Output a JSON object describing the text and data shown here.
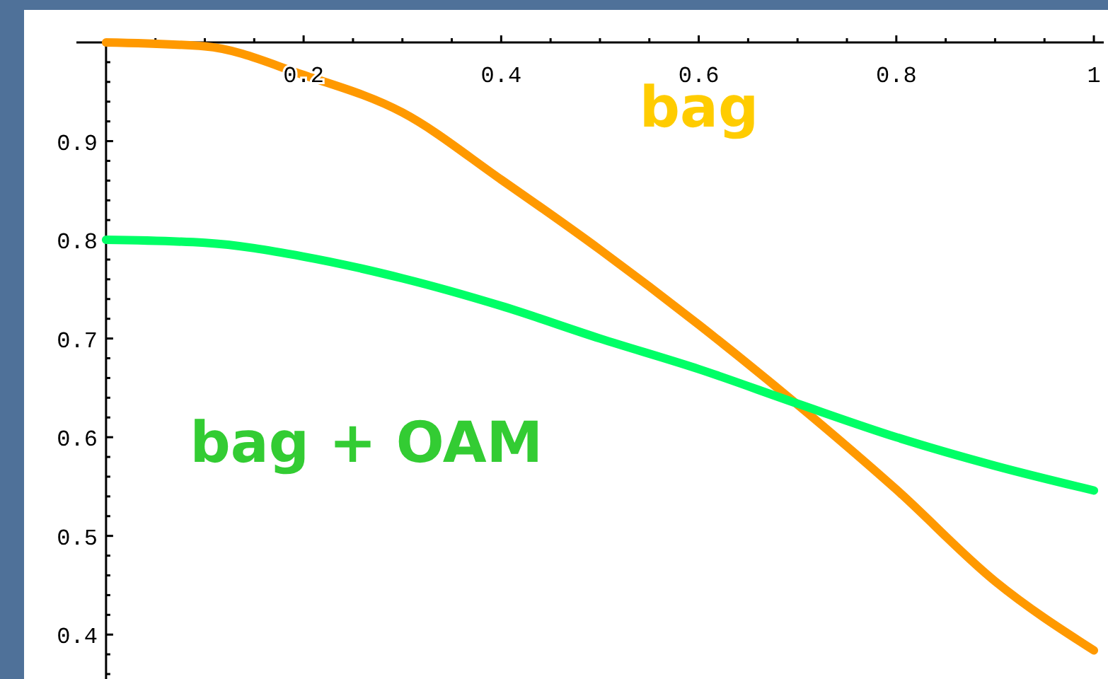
{
  "chart_data": {
    "type": "line",
    "xlim": [
      -0.03,
      1.01
    ],
    "ylim": [
      0.355,
      1.0
    ],
    "xticks": [
      {
        "value": 0.05,
        "label": null
      },
      {
        "value": 0.1,
        "label": null
      },
      {
        "value": 0.15,
        "label": null
      },
      0.2,
      {
        "value": 0.25,
        "label": null
      },
      {
        "value": 0.3,
        "label": null
      },
      {
        "value": 0.35,
        "label": null
      },
      0.4,
      {
        "value": 0.45,
        "label": null
      },
      {
        "value": 0.5,
        "label": null
      },
      {
        "value": 0.55,
        "label": null
      },
      0.6,
      {
        "value": 0.65,
        "label": null
      },
      {
        "value": 0.7,
        "label": null
      },
      {
        "value": 0.75,
        "label": null
      },
      0.8,
      {
        "value": 0.85,
        "label": null
      },
      {
        "value": 0.9,
        "label": null
      },
      {
        "value": 0.95,
        "label": null
      },
      1
    ],
    "yticks": [
      {
        "value": 0.36,
        "label": null
      },
      {
        "value": 0.38,
        "label": null
      },
      0.4,
      {
        "value": 0.42,
        "label": null
      },
      {
        "value": 0.44,
        "label": null
      },
      {
        "value": 0.46,
        "label": null
      },
      {
        "value": 0.48,
        "label": null
      },
      0.5,
      {
        "value": 0.52,
        "label": null
      },
      {
        "value": 0.54,
        "label": null
      },
      {
        "value": 0.56,
        "label": null
      },
      {
        "value": 0.58,
        "label": null
      },
      0.6,
      {
        "value": 0.62,
        "label": null
      },
      {
        "value": 0.64,
        "label": null
      },
      {
        "value": 0.66,
        "label": null
      },
      {
        "value": 0.68,
        "label": null
      },
      0.7,
      {
        "value": 0.72,
        "label": null
      },
      {
        "value": 0.74,
        "label": null
      },
      {
        "value": 0.76,
        "label": null
      },
      {
        "value": 0.78,
        "label": null
      },
      0.8,
      {
        "value": 0.82,
        "label": null
      },
      {
        "value": 0.84,
        "label": null
      },
      {
        "value": 0.86,
        "label": null
      },
      {
        "value": 0.88,
        "label": null
      },
      0.9,
      {
        "value": 0.92,
        "label": null
      },
      {
        "value": 0.94,
        "label": null
      },
      {
        "value": 0.96,
        "label": null
      },
      {
        "value": 0.98,
        "label": null
      }
    ],
    "x": [
      0,
      0.1,
      0.2,
      0.3,
      0.4,
      0.5,
      0.6,
      0.7,
      0.8,
      0.9,
      1
    ],
    "grid": false,
    "marker": "none",
    "line_style": "solid",
    "series": [
      {
        "name": "bag",
        "color": "#ff9900",
        "values": [
          1.0,
          0.996,
          0.967,
          0.929,
          0.861,
          0.79,
          0.714,
          0.633,
          0.547,
          0.454,
          0.384
        ]
      },
      {
        "name": "bag + OAM",
        "color": "#00ff66",
        "values": [
          0.8,
          0.797,
          0.783,
          0.761,
          0.733,
          0.7,
          0.669,
          0.634,
          0.6,
          0.571,
          0.546
        ]
      }
    ]
  }
}
